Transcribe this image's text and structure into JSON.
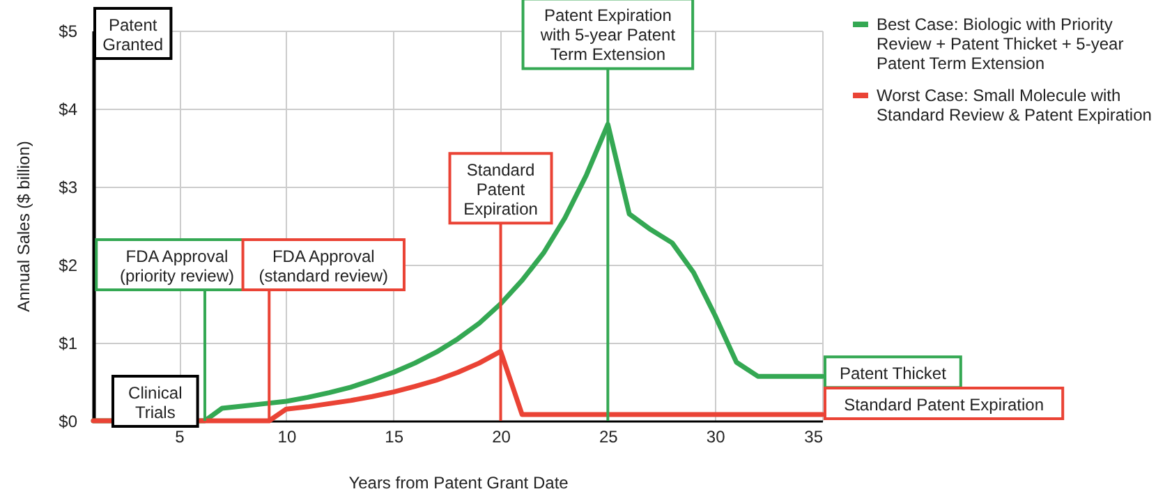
{
  "chart_data": {
    "type": "line",
    "xlabel": "Years from Patent Grant Date",
    "ylabel": "Annual Sales ($ billion)",
    "xlim": [
      1,
      35
    ],
    "xticks": [
      5,
      10,
      15,
      20,
      25,
      30,
      35
    ],
    "ylim": [
      0,
      5
    ],
    "yticks": [
      {
        "value": 0,
        "label": "$0"
      },
      {
        "value": 1,
        "label": "$1"
      },
      {
        "value": 2,
        "label": "$2"
      },
      {
        "value": 3,
        "label": "$3"
      },
      {
        "value": 4,
        "label": "$4"
      },
      {
        "value": 5,
        "label": "$5"
      }
    ],
    "grid": true,
    "legend": "top right",
    "series": [
      {
        "name": "Best Case: Biologic with Priority Review + Patent Thicket + 5-year Patent Term Extension",
        "color": "#34a853",
        "x": [
          1,
          6.2,
          7,
          8,
          9,
          10,
          11,
          12,
          13,
          14,
          15,
          16,
          17,
          18,
          19,
          20,
          21,
          22,
          23,
          24,
          25,
          26,
          27,
          28,
          29,
          30,
          31,
          32,
          33,
          34,
          35
        ],
        "values": [
          0,
          0,
          0.16,
          0.19,
          0.22,
          0.25,
          0.3,
          0.36,
          0.43,
          0.52,
          0.62,
          0.74,
          0.88,
          1.05,
          1.25,
          1.5,
          1.8,
          2.15,
          2.6,
          3.15,
          3.8,
          2.65,
          2.45,
          2.28,
          1.9,
          1.35,
          0.75,
          0.57,
          0.57,
          0.57,
          0.57
        ]
      },
      {
        "name": "Worst Case: Small Molecule with Standard Review & Patent Expiration",
        "color": "#ea4335",
        "x": [
          1,
          9.2,
          10,
          11,
          12,
          13,
          14,
          15,
          16,
          17,
          18,
          19,
          20,
          21,
          22,
          23,
          24,
          25,
          26,
          27,
          28,
          29,
          30,
          31,
          32,
          33,
          34,
          35
        ],
        "values": [
          0,
          0,
          0.15,
          0.18,
          0.22,
          0.26,
          0.31,
          0.37,
          0.44,
          0.52,
          0.62,
          0.74,
          0.89,
          0.08,
          0.08,
          0.08,
          0.08,
          0.08,
          0.08,
          0.08,
          0.08,
          0.08,
          0.08,
          0.08,
          0.08,
          0.08,
          0.08,
          0.08
        ]
      }
    ],
    "ref_lines": [
      {
        "axis": "x",
        "value": 6.2,
        "label": "FDA Approval (priority review)",
        "color": "#34a853"
      },
      {
        "axis": "x",
        "value": 9.2,
        "label": "FDA Approval (standard review)",
        "color": "#ea4335"
      },
      {
        "axis": "x",
        "value": 20,
        "label": "Standard Patent Expiration",
        "color": "#ea4335"
      },
      {
        "axis": "x",
        "value": 25,
        "label": "Patent Expiration with 5-year Patent Term Extension",
        "color": "#34a853"
      }
    ],
    "annotations": [
      "Patent Granted",
      "Clinical Trials",
      {
        "text": "Patent Thicket",
        "x": 35,
        "y": 0.57
      },
      {
        "text": "Standard Patent Expiration",
        "x": 35,
        "y": 0.08
      }
    ]
  }
}
